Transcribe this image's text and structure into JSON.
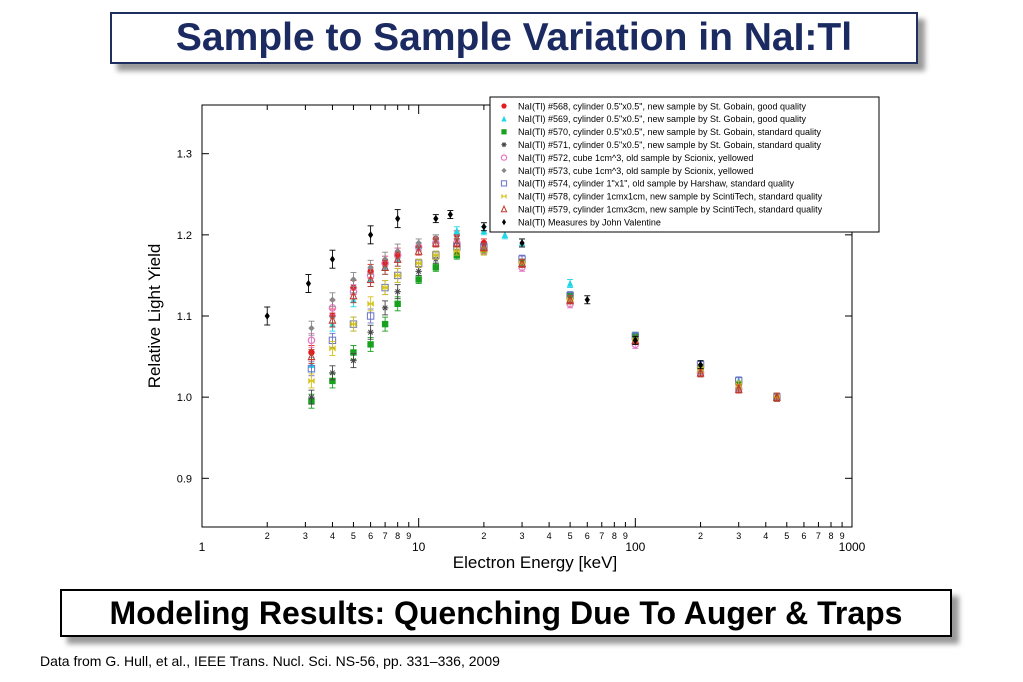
{
  "slide": {
    "title": "Sample to Sample Variation in NaI:Tl",
    "subtitle": "Modeling Results: Quenching Due To Auger & Traps",
    "footnote": "Data from G. Hull, et al., IEEE Trans. Nucl. Sci. NS-56, pp. 331–336, 2009"
  },
  "chart_data": {
    "type": "scatter",
    "xscale": "log",
    "xlim": [
      1,
      1000
    ],
    "ylim": [
      0.84,
      1.36
    ],
    "xlabel": "Electron Energy [keV]",
    "ylabel": "Relative Light Yield",
    "grid": false,
    "legend_position": "top-right",
    "yticks": [
      "0.9",
      "1.0",
      "1.1",
      "1.2",
      "1.3"
    ],
    "xticks": [
      "1",
      "2",
      "3",
      "4",
      "5",
      "6",
      "7",
      "8",
      "9",
      "10",
      "2",
      "3",
      "4",
      "5",
      "6",
      "7",
      "8",
      "9",
      "100",
      "2",
      "3",
      "4",
      "5",
      "6",
      "7",
      "8",
      "9",
      "1000"
    ],
    "series": [
      {
        "name": "NaI(Tl) #568, cylinder 0.5\"x0.5\", new sample by St. Gobain, good quality",
        "color": "#e41a1c",
        "marker": "circle",
        "x": [
          3.2,
          4,
          5,
          6,
          7,
          8,
          10,
          12,
          15,
          20,
          30,
          50,
          100,
          200,
          300,
          450
        ],
        "y": [
          1.055,
          1.1,
          1.135,
          1.155,
          1.165,
          1.175,
          1.185,
          1.195,
          1.2,
          1.19,
          1.165,
          1.12,
          1.07,
          1.035,
          1.015,
          1.0
        ]
      },
      {
        "name": "NaI(Tl) #569, cylinder 0.5\"x0.5\", new sample by St. Gobain, good quality",
        "color": "#1fd5e6",
        "marker": "triangle",
        "x": [
          3.2,
          4,
          5,
          6,
          7,
          8,
          10,
          12,
          15,
          20,
          25,
          30,
          50,
          100,
          200,
          300,
          450
        ],
        "y": [
          1.04,
          1.09,
          1.12,
          1.145,
          1.16,
          1.17,
          1.185,
          1.195,
          1.205,
          1.205,
          1.2,
          1.19,
          1.14,
          1.075,
          1.04,
          1.02,
          1.0
        ]
      },
      {
        "name": "NaI(Tl) #570, cylinder 0.5\"x0.5\", new sample by St. Gobain, standard quality",
        "color": "#18a01e",
        "marker": "square",
        "x": [
          3.2,
          4,
          5,
          6,
          7,
          8,
          10,
          12,
          15,
          20,
          30,
          50,
          100,
          200,
          300,
          450
        ],
        "y": [
          0.995,
          1.02,
          1.055,
          1.065,
          1.09,
          1.115,
          1.145,
          1.16,
          1.175,
          1.18,
          1.165,
          1.125,
          1.075,
          1.035,
          1.015,
          1.0
        ]
      },
      {
        "name": "NaI(Tl) #571, cylinder 0.5\"x0.5\", new sample by St. Gobain, standard quality",
        "color": "#444444",
        "marker": "star",
        "x": [
          3.2,
          4,
          5,
          6,
          7,
          8,
          10,
          12,
          15,
          20,
          30,
          50,
          100,
          200,
          300,
          450
        ],
        "y": [
          1.0,
          1.03,
          1.045,
          1.08,
          1.11,
          1.13,
          1.155,
          1.17,
          1.18,
          1.185,
          1.165,
          1.12,
          1.07,
          1.035,
          1.015,
          1.0
        ]
      },
      {
        "name": "NaI(Tl) #572, cube 1cm^3, old sample by Scionix, yellowed",
        "color": "#e377c2",
        "marker": "circle-open",
        "x": [
          3.2,
          4,
          5,
          6,
          7,
          8,
          10,
          12,
          15,
          20,
          30,
          50,
          100,
          200,
          300,
          450
        ],
        "y": [
          1.07,
          1.11,
          1.13,
          1.15,
          1.165,
          1.175,
          1.185,
          1.19,
          1.19,
          1.18,
          1.16,
          1.115,
          1.065,
          1.03,
          1.01,
          1.0
        ]
      },
      {
        "name": "NaI(Tl) #573, cube 1cm^3, old sample by Scionix, yellowed",
        "color": "#888888",
        "marker": "diamond",
        "x": [
          3.2,
          4,
          5,
          6,
          7,
          8,
          10,
          12,
          15,
          20,
          30,
          50,
          100,
          200,
          300,
          450
        ],
        "y": [
          1.085,
          1.12,
          1.145,
          1.16,
          1.17,
          1.18,
          1.19,
          1.195,
          1.195,
          1.185,
          1.165,
          1.12,
          1.07,
          1.03,
          1.01,
          1.0
        ]
      },
      {
        "name": "NaI(Tl) #574, cylinder 1\"x1\", old sample by Harshaw, standard quality",
        "color": "#6a72c8",
        "marker": "square-open",
        "x": [
          3.2,
          4,
          5,
          6,
          7,
          8,
          10,
          12,
          15,
          20,
          30,
          50,
          100,
          200,
          300,
          450
        ],
        "y": [
          1.035,
          1.07,
          1.09,
          1.1,
          1.135,
          1.15,
          1.165,
          1.175,
          1.185,
          1.185,
          1.17,
          1.125,
          1.075,
          1.04,
          1.02,
          1.0
        ]
      },
      {
        "name": "NaI(Tl) #578, cylinder 1cmx1cm, new sample by ScintiTech, standard quality",
        "color": "#d4c21a",
        "marker": "bowtie",
        "x": [
          3.2,
          4,
          5,
          6,
          7,
          8,
          10,
          12,
          15,
          20,
          30,
          50,
          100,
          200,
          300,
          450
        ],
        "y": [
          1.02,
          1.06,
          1.09,
          1.115,
          1.135,
          1.15,
          1.165,
          1.175,
          1.18,
          1.18,
          1.165,
          1.12,
          1.07,
          1.035,
          1.015,
          1.0
        ]
      },
      {
        "name": "NaI(Tl) #579, cylinder 1cmx3cm, new sample by ScintiTech, standard quality",
        "color": "#c0392b",
        "marker": "triangle-open",
        "x": [
          3.2,
          4,
          5,
          6,
          7,
          8,
          10,
          12,
          15,
          20,
          30,
          50,
          100,
          200,
          300,
          450
        ],
        "y": [
          1.05,
          1.095,
          1.125,
          1.145,
          1.16,
          1.17,
          1.18,
          1.19,
          1.19,
          1.185,
          1.165,
          1.12,
          1.07,
          1.03,
          1.01,
          1.0
        ]
      },
      {
        "name": "NaI(Tl) Measures by John Valentine",
        "color": "#000000",
        "marker": "diamond-filled",
        "x": [
          2,
          3.1,
          4,
          6,
          8,
          12,
          14,
          20,
          30,
          60,
          100,
          200
        ],
        "y": [
          1.1,
          1.14,
          1.17,
          1.2,
          1.22,
          1.22,
          1.225,
          1.21,
          1.19,
          1.12,
          1.07,
          1.04
        ]
      }
    ]
  }
}
